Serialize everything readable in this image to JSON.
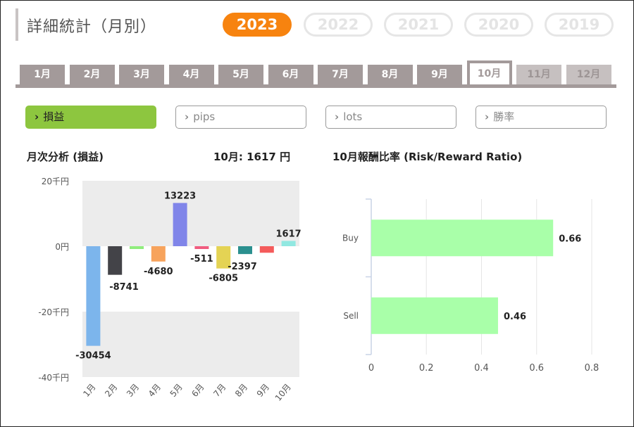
{
  "header": {
    "title": "詳細統計（月別）"
  },
  "years": [
    "2023",
    "2022",
    "2021",
    "2020",
    "2019"
  ],
  "selected_year": "2023",
  "months": [
    {
      "label": "1月",
      "state": "normal"
    },
    {
      "label": "2月",
      "state": "normal"
    },
    {
      "label": "3月",
      "state": "normal"
    },
    {
      "label": "4月",
      "state": "normal"
    },
    {
      "label": "5月",
      "state": "normal"
    },
    {
      "label": "6月",
      "state": "normal"
    },
    {
      "label": "7月",
      "state": "normal"
    },
    {
      "label": "8月",
      "state": "normal"
    },
    {
      "label": "9月",
      "state": "normal"
    },
    {
      "label": "10月",
      "state": "active"
    },
    {
      "label": "11月",
      "state": "disabled"
    },
    {
      "label": "12月",
      "state": "disabled"
    }
  ],
  "metrics": [
    {
      "label": "損益",
      "active": true
    },
    {
      "label": "pips",
      "active": false
    },
    {
      "label": "lots",
      "active": false
    },
    {
      "label": "勝率",
      "active": false
    }
  ],
  "monthly": {
    "heading": "月次分析 (損益)",
    "summary": "10月:  1617 円"
  },
  "rr": {
    "heading": "10月報酬比率 (Risk/Reward Ratio)"
  },
  "chart_data": [
    {
      "type": "bar",
      "categories": [
        "1月",
        "2月",
        "3月",
        "4月",
        "5月",
        "6月",
        "7月",
        "8月",
        "9月",
        "10月"
      ],
      "values": [
        -30454,
        -8741,
        -800,
        -4680,
        13223,
        -511,
        -6805,
        -2397,
        -2000,
        1617
      ],
      "data_labels": [
        "-30454",
        "-8741",
        "",
        "-4680",
        "13223",
        "-511",
        "-6805",
        "-2397",
        "",
        "1617"
      ],
      "colors": [
        "#7cb5ec",
        "#434348",
        "#90ed7d",
        "#f7a35c",
        "#8085e9",
        "#f15c80",
        "#e4d354",
        "#2b908f",
        "#f45b5b",
        "#91e8e1"
      ],
      "ylim": [
        -40000,
        20000
      ],
      "yticks": [
        20000,
        0,
        -20000,
        -40000
      ],
      "ytick_labels": [
        "20千円",
        "0円",
        "-20千円",
        "-40千円"
      ],
      "plot_bands": "alternating grey",
      "legend": "none"
    },
    {
      "type": "bar",
      "orientation": "horizontal",
      "categories": [
        "Buy",
        "Sell"
      ],
      "values": [
        0.66,
        0.46
      ],
      "data_labels": [
        "0.66",
        "0.46"
      ],
      "color": "#a9ffa9",
      "xlim": [
        0,
        0.8
      ],
      "xticks": [
        "0",
        "0.2",
        "0.4",
        "0.6",
        "0.8"
      ],
      "grid": true,
      "legend": "none"
    }
  ]
}
